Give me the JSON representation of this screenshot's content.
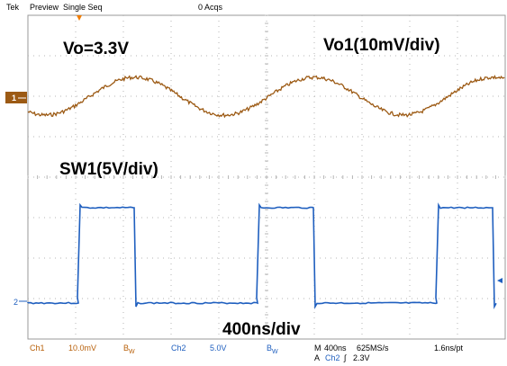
{
  "header": {
    "brand": "Tek",
    "mode": "Preview",
    "acq_mode": "Single Seq",
    "acq_count": "0 Acqs"
  },
  "annotations": {
    "vo_label": "Vo=3.3V",
    "ch1_label": "Vo1(10mV/div)",
    "ch2_label": "SW1(5V/div)",
    "time_label": "400ns/div"
  },
  "channels": {
    "ch1": {
      "marker": "1",
      "name": "Ch1",
      "scale": "10.0mV",
      "bw": "B",
      "bw_sub": "W",
      "color": "#9c5a14"
    },
    "ch2": {
      "marker": "2",
      "name": "Ch2",
      "scale": "5.0V",
      "bw": "B",
      "bw_sub": "W",
      "color": "#1f5fbf"
    }
  },
  "timebase": {
    "mode": "M",
    "time_per_div": "400ns",
    "sample_rate": "625MS/s",
    "res": "1.6ns/pt",
    "trigger_src_prefix": "A",
    "trigger_src": "Ch2",
    "trigger_slope": "∫",
    "trigger_level": "2.3V"
  },
  "colors": {
    "grid": "#9a9a9a",
    "accent_orange": "#f07c00",
    "ch1_trace": "#9c5a14",
    "ch2_trace": "#1f5fbf"
  }
}
